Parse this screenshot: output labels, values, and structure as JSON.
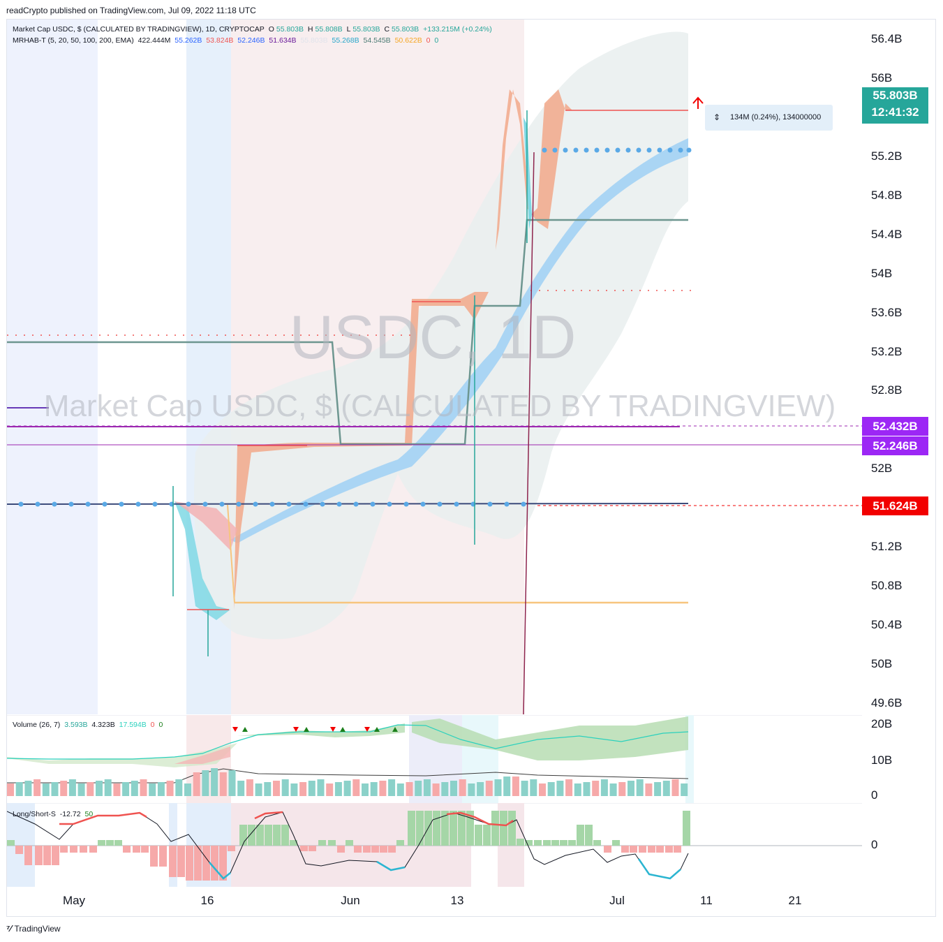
{
  "header": {
    "published_by": "readCrypto published on TradingView.com, Jul 09, 2022 11:18 UTC"
  },
  "legend": {
    "main": {
      "symbol": "Market Cap USDC, $ (CALCULATED BY TRADINGVIEW), 1D, CRYPTOCAP",
      "o_label": "O",
      "o": "55.803B",
      "h_label": "H",
      "h": "55.808B",
      "l_label": "L",
      "l": "55.803B",
      "c_label": "C",
      "c": "55.803B",
      "change": "+133.215M (+0.24%)"
    },
    "indicator": {
      "name": "MRHAB-T (5, 20, 50, 100, 200, EMA)",
      "v1": "422.444M",
      "v2": "55.262B",
      "v3": "53.824B",
      "v4": "52.246B",
      "v5": "51.634B",
      "v6": "55.803B",
      "v7": "55.268B",
      "v8": "54.545B",
      "v9": "50.622B",
      "v10": "0",
      "v11": "0"
    },
    "volume": {
      "name": "Volume (26, 7)",
      "v1": "3.593B",
      "v2": "4.323B",
      "v3": "17.594B",
      "v4": "0",
      "v5": "0"
    },
    "longshort": {
      "name": "Long/Short-S",
      "v1": "-12.72",
      "v2": "50"
    }
  },
  "watermark": {
    "symbol": "USDC, 1D",
    "description": "Market Cap USDC, $ (CALCULATED BY TRADINGVIEW)"
  },
  "price_axis": [
    "56.4B",
    "56B",
    "55.2B",
    "54.8B",
    "54.4B",
    "54B",
    "53.6B",
    "53.2B",
    "52.8B",
    "52B",
    "51.2B",
    "50.8B",
    "50.4B",
    "50B",
    "49.6B"
  ],
  "price_tags": {
    "last_price": "55.803B",
    "countdown": "12:41:32",
    "level_a": "52.432B",
    "level_b": "52.246B",
    "level_c": "51.624B"
  },
  "measure": {
    "text": "134M (0.24%), 134000000"
  },
  "volume_axis": [
    "20B",
    "10B",
    "0"
  ],
  "osc_axis": [
    "0"
  ],
  "time_axis": [
    "May",
    "16",
    "Jun",
    "13",
    "Jul",
    "11",
    "21"
  ],
  "footer": {
    "brand": "TradingView"
  },
  "colors": {
    "up": "#26a69a",
    "down": "#ef5350",
    "salmon": "#f2a88a",
    "aqua": "#7fd8e4",
    "blue_band": "#9fd0f5",
    "purple": "#9c27b0",
    "last_price_bg": "#26a69a",
    "level_a_bg": "#9c27f5",
    "level_b_bg": "#9c27f5",
    "level_c_bg": "#f20000"
  }
}
